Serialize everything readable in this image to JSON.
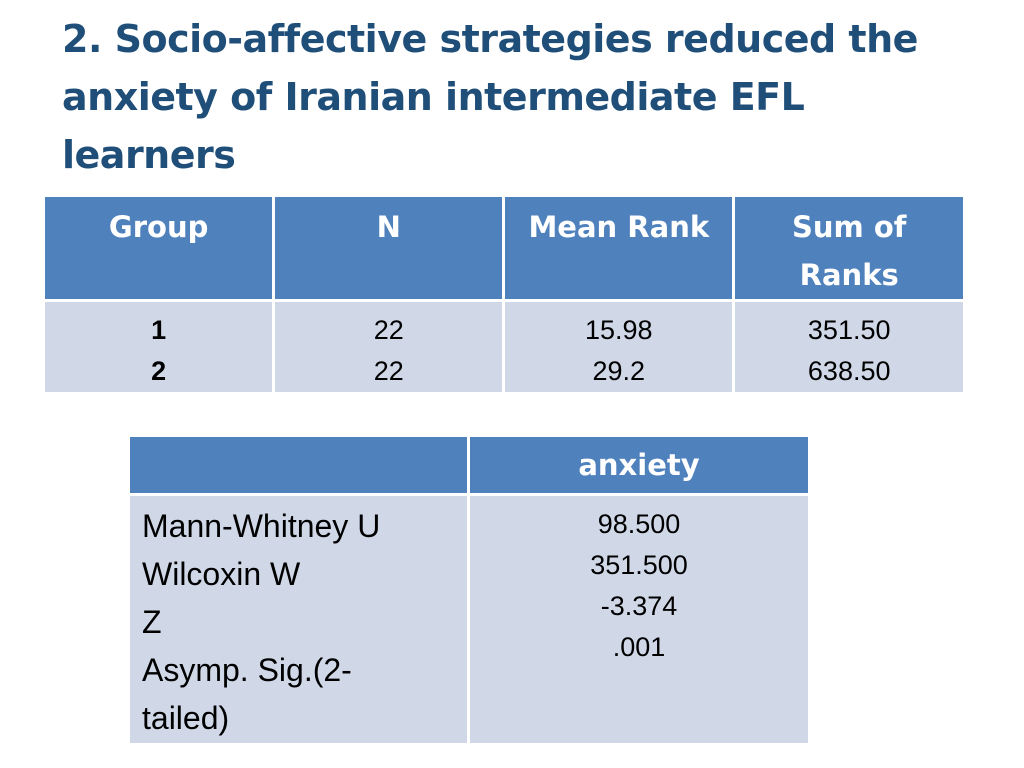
{
  "slide": {
    "title": "2. Socio-affective strategies reduced the anxiety of Iranian intermediate EFL learners"
  },
  "rank_table": {
    "headers": [
      "Group",
      "N",
      "Mean Rank",
      "Sum of Ranks"
    ],
    "rows": [
      {
        "group": "1",
        "n": "22",
        "mean_rank": "15.98",
        "sum_of_ranks": "351.50"
      },
      {
        "group": "2",
        "n": "22",
        "mean_rank": "29.2",
        "sum_of_ranks": "638.50"
      }
    ]
  },
  "stats_table": {
    "header_blank": "",
    "header_value": "anxiety",
    "rows": [
      {
        "label": "Mann-Whitney U",
        "value": "98.500"
      },
      {
        "label": "Wilcoxin W",
        "value": "351.500"
      },
      {
        "label": "Z",
        "value": "-3.374"
      },
      {
        "label": "Asymp. Sig.(2-tailed)",
        "value": ".001"
      }
    ]
  },
  "colors": {
    "title": "#1f4e79",
    "header_fill": "#4f81bd",
    "row_fill": "#d0d8e8"
  }
}
